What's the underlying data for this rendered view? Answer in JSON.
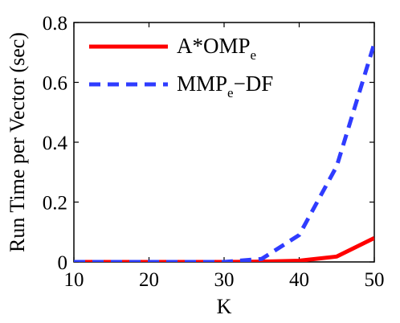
{
  "chart_data": {
    "type": "line",
    "title": "",
    "xlabel": "K",
    "ylabel": "Run Time per Vector (sec)",
    "xlim": [
      10,
      50
    ],
    "ylim": [
      0,
      0.8
    ],
    "xticks": [
      "10",
      "20",
      "30",
      "40",
      "50"
    ],
    "yticks": [
      "0",
      "0.2",
      "0.4",
      "0.6",
      "0.8"
    ],
    "grid": false,
    "legend_position": "top-left",
    "x": [
      10,
      15,
      20,
      25,
      30,
      35,
      40,
      45,
      50
    ],
    "series": [
      {
        "name": "A*OMP",
        "name_subscript": "e",
        "color": "#ff0000",
        "dash": "solid",
        "values": [
          0.0,
          0.0,
          0.0,
          0.0,
          0.0,
          0.001,
          0.004,
          0.018,
          0.08
        ]
      },
      {
        "name": "MMP",
        "name_subscript": "e",
        "name_suffix": "−DF",
        "color": "#2f3cff",
        "dash": "dashed",
        "values": [
          0.0,
          0.0,
          0.0,
          0.0,
          0.0,
          0.01,
          0.09,
          0.32,
          0.73
        ]
      }
    ]
  }
}
